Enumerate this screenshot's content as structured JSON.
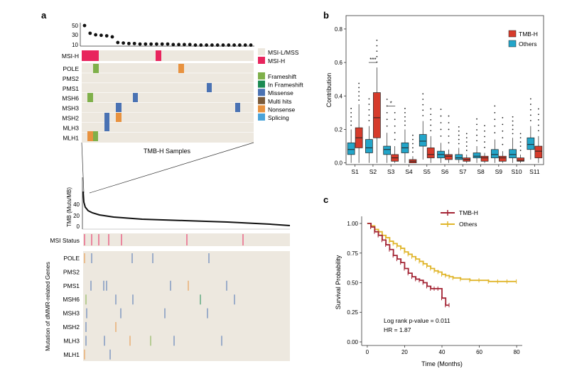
{
  "panel_labels": {
    "a": "a",
    "b": "b",
    "c": "c"
  },
  "panel_a": {
    "top_tmb_ticks": [
      "50",
      "30",
      "10"
    ],
    "top_tmb_values": [
      50,
      35,
      32,
      31,
      30,
      28,
      17,
      16,
      15,
      15,
      14,
      14,
      14,
      14,
      14,
      14,
      13,
      13,
      13,
      13,
      12,
      12,
      12,
      12,
      12,
      12,
      12,
      12,
      12,
      12,
      12
    ],
    "genes_top": [
      "POLE",
      "PMS2",
      "PMS1",
      "MSH6",
      "MSH3",
      "MSH2",
      "MLH3",
      "MLH1"
    ],
    "msi_label": "MSI-H",
    "zoom_caption": "TMB-H Samples",
    "legend_msi": [
      {
        "label": "MSI-L/MSS",
        "color": "#ede8df"
      },
      {
        "label": "MSI-H",
        "color": "#e8245d"
      }
    ],
    "legend_mut": [
      {
        "label": "Frameshift",
        "color": "#7fb04a"
      },
      {
        "label": "In Frameshift",
        "color": "#1b8a52"
      },
      {
        "label": "Missense",
        "color": "#4a72b3"
      },
      {
        "label": "Multi hits",
        "color": "#7a5a3a"
      },
      {
        "label": "Nonsense",
        "color": "#e8923f"
      },
      {
        "label": "Splicing",
        "color": "#4aa3d9"
      }
    ],
    "bottom_ylabel": "TMB (Muts/MB)",
    "bottom_ticks": [
      "40",
      "20",
      "0"
    ],
    "msi_status_label": "MSI Status",
    "genes_bottom": [
      "POLE",
      "PMS2",
      "PMS1",
      "MSH6",
      "MSH3",
      "MSH2",
      "MLH3",
      "MLH1"
    ],
    "bottom_ylabel2": "Mutation of dMMR-related Genes"
  },
  "chart_data": [
    {
      "type": "boxplot",
      "panel": "b",
      "ylabel": "Contribution",
      "categories": [
        "S1",
        "S2",
        "S3",
        "S4",
        "S5",
        "S6",
        "S7",
        "S8",
        "S9",
        "S10",
        "S11"
      ],
      "ylim": [
        -0.01,
        0.88
      ],
      "yticks": [
        "0.0",
        "0.2",
        "0.4",
        "0.6",
        "0.8"
      ],
      "legend": [
        {
          "name": "TMB-H",
          "color": "#d63b2b"
        },
        {
          "name": "Others",
          "color": "#23a5c9"
        }
      ],
      "annotations": [
        {
          "label": "***",
          "category": "S2"
        },
        {
          "label": "*",
          "category": "S3"
        }
      ],
      "series": [
        {
          "name": "Others",
          "color": "#23a5c9",
          "boxes": [
            [
              0.0,
              0.05,
              0.08,
              0.12,
              0.2
            ],
            [
              0.0,
              0.06,
              0.09,
              0.14,
              0.22
            ],
            [
              0.0,
              0.05,
              0.08,
              0.1,
              0.18
            ],
            [
              0.0,
              0.06,
              0.09,
              0.12,
              0.2
            ],
            [
              0.02,
              0.1,
              0.13,
              0.17,
              0.25
            ],
            [
              0.0,
              0.03,
              0.05,
              0.07,
              0.12
            ],
            [
              0.0,
              0.02,
              0.03,
              0.05,
              0.09
            ],
            [
              0.0,
              0.03,
              0.04,
              0.06,
              0.1
            ],
            [
              0.0,
              0.03,
              0.05,
              0.08,
              0.14
            ],
            [
              0.0,
              0.03,
              0.05,
              0.08,
              0.15
            ],
            [
              0.02,
              0.08,
              0.11,
              0.15,
              0.22
            ]
          ]
        },
        {
          "name": "TMB-H",
          "color": "#d63b2b",
          "boxes": [
            [
              0.0,
              0.09,
              0.15,
              0.21,
              0.35
            ],
            [
              0.0,
              0.15,
              0.27,
              0.42,
              0.57
            ],
            [
              0.0,
              0.01,
              0.03,
              0.05,
              0.1
            ],
            [
              0.0,
              0.0,
              0.01,
              0.02,
              0.04
            ],
            [
              0.0,
              0.03,
              0.05,
              0.09,
              0.16
            ],
            [
              0.0,
              0.02,
              0.04,
              0.05,
              0.08
            ],
            [
              0.0,
              0.01,
              0.02,
              0.03,
              0.05
            ],
            [
              0.0,
              0.01,
              0.03,
              0.04,
              0.06
            ],
            [
              0.0,
              0.01,
              0.03,
              0.04,
              0.07
            ],
            [
              0.0,
              0.01,
              0.015,
              0.03,
              0.05
            ],
            [
              0.0,
              0.03,
              0.07,
              0.1,
              0.16
            ]
          ]
        }
      ]
    },
    {
      "type": "line",
      "panel": "c",
      "xlabel": "Time (Months)",
      "ylabel": "Survival Probability",
      "xticks": [
        "0",
        "20",
        "40",
        "60",
        "80"
      ],
      "yticks": [
        "0.00",
        "0.25",
        "0.50",
        "0.75",
        "1.00"
      ],
      "xlim": [
        -3,
        83
      ],
      "ylim": [
        -0.03,
        1.06
      ],
      "legend": [
        {
          "name": "TMB-H",
          "color": "#a32434"
        },
        {
          "name": "Others",
          "color": "#e0b52a"
        }
      ],
      "annotation_lines": [
        "Log rank p-value = 0.011",
        "HR = 1.87"
      ],
      "series": [
        {
          "name": "TMB-H",
          "color": "#a32434",
          "x": [
            0,
            2,
            4,
            6,
            8,
            10,
            12,
            14,
            16,
            18,
            20,
            22,
            24,
            26,
            28,
            30,
            32,
            34,
            36,
            38,
            40,
            42,
            44
          ],
          "y": [
            1.0,
            0.97,
            0.93,
            0.9,
            0.86,
            0.82,
            0.78,
            0.73,
            0.7,
            0.67,
            0.62,
            0.58,
            0.55,
            0.53,
            0.52,
            0.5,
            0.47,
            0.45,
            0.45,
            0.45,
            0.37,
            0.31,
            0.31
          ]
        },
        {
          "name": "Others",
          "color": "#e0b52a",
          "x": [
            0,
            2,
            4,
            6,
            8,
            10,
            12,
            14,
            16,
            18,
            20,
            22,
            24,
            26,
            28,
            30,
            32,
            34,
            36,
            38,
            40,
            42,
            44,
            46,
            50,
            55,
            60,
            65,
            70,
            75,
            80
          ],
          "y": [
            1.0,
            0.98,
            0.95,
            0.93,
            0.9,
            0.88,
            0.85,
            0.83,
            0.81,
            0.79,
            0.76,
            0.74,
            0.72,
            0.7,
            0.68,
            0.66,
            0.64,
            0.62,
            0.6,
            0.59,
            0.57,
            0.56,
            0.55,
            0.54,
            0.53,
            0.52,
            0.52,
            0.51,
            0.51,
            0.51,
            0.51
          ]
        }
      ]
    }
  ]
}
